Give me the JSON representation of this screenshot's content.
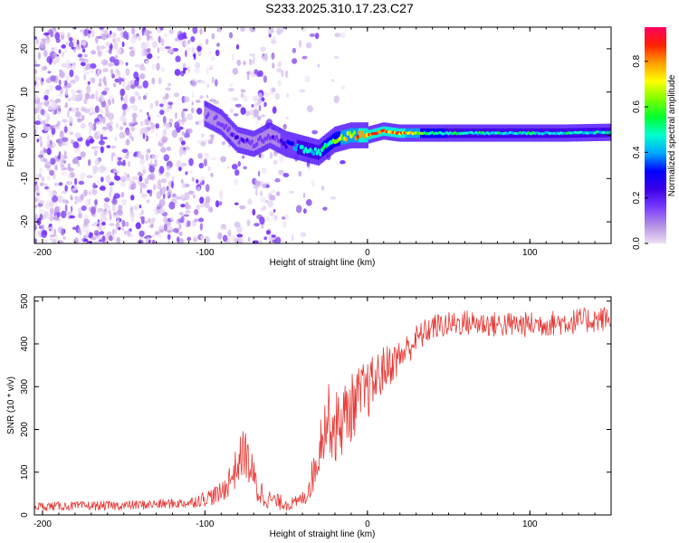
{
  "title": "S233.2025.310.17.23.C27",
  "colors": {
    "snr_line": "#e53935",
    "axis": "#000000",
    "colorbar": [
      "#ede0f4",
      "#b490e4",
      "#7a3cff",
      "#3d00e8",
      "#0000ff",
      "#00a8ff",
      "#00ffd0",
      "#00ff30",
      "#7dff00",
      "#ffff00",
      "#ffa000",
      "#ff2000",
      "#ff0060"
    ]
  },
  "chart_data": [
    {
      "type": "heatmap",
      "name": "spectrogram",
      "xlabel": "Height of straight line (km)",
      "ylabel": "Frequency (Hz)",
      "xlim": [
        -205,
        150
      ],
      "ylim": [
        -25,
        25
      ],
      "xticks": [
        -200,
        -100,
        0,
        100
      ],
      "xtick_labels": [
        "-200",
        "-100",
        "0",
        "100"
      ],
      "yticks": [
        20,
        10,
        0,
        -10,
        -20
      ],
      "ytick_labels": [
        "20",
        "10",
        "0",
        "-10",
        "-20"
      ],
      "colorbar": {
        "label": "Normalized spectral amplitude",
        "range": [
          0,
          0.95
        ],
        "ticks": [
          0.8,
          0.6,
          0.4,
          0.2,
          0.0
        ],
        "tick_labels": [
          "0.8",
          "0.6",
          "0.4",
          "0.2",
          "0.0"
        ]
      },
      "ridge": {
        "description": "carrier frequency track vs height",
        "x": [
          -100,
          -90,
          -80,
          -70,
          -60,
          -50,
          -40,
          -30,
          -20,
          -10,
          0,
          10,
          20,
          40,
          60,
          80,
          100,
          120,
          150
        ],
        "freq": [
          5,
          3,
          -1,
          -2,
          0,
          -2,
          -3,
          -4,
          -1,
          0,
          0,
          1,
          0.5,
          0.5,
          0.5,
          0.5,
          0.5,
          0.5,
          0.7
        ],
        "amplitude": [
          0.15,
          0.18,
          0.25,
          0.2,
          0.2,
          0.3,
          0.45,
          0.5,
          0.6,
          0.75,
          0.85,
          0.9,
          0.85,
          0.55,
          0.5,
          0.5,
          0.5,
          0.5,
          0.5
        ]
      }
    },
    {
      "type": "line",
      "name": "snr",
      "xlabel": "Height of straight line (km)",
      "ylabel": "SNR (10 * v/v)",
      "xlim": [
        -205,
        150
      ],
      "ylim": [
        0,
        510
      ],
      "xticks": [
        -200,
        -100,
        0,
        100
      ],
      "xtick_labels": [
        "-200",
        "-100",
        "0",
        "100"
      ],
      "yticks": [
        500,
        400,
        300,
        200,
        100,
        0
      ],
      "ytick_labels": [
        "500",
        "400",
        "300",
        "200",
        "100",
        "0"
      ],
      "trend": {
        "x": [
          -205,
          -150,
          -110,
          -90,
          -82,
          -76,
          -72,
          -68,
          -62,
          -55,
          -45,
          -38,
          -32,
          -28,
          -24,
          -20,
          -16,
          -12,
          -8,
          -4,
          0,
          4,
          10,
          20,
          30,
          40,
          60,
          80,
          100,
          120,
          150
        ],
        "y": [
          20,
          22,
          28,
          50,
          100,
          150,
          110,
          60,
          40,
          30,
          25,
          45,
          110,
          190,
          230,
          200,
          220,
          240,
          260,
          280,
          290,
          310,
          340,
          370,
          410,
          440,
          450,
          445,
          445,
          450,
          460
        ]
      },
      "noise_amplitude": {
        "x": [
          -205,
          -110,
          -90,
          -75,
          -60,
          -40,
          -30,
          -20,
          -10,
          0,
          20,
          40,
          150
        ],
        "y": [
          10,
          12,
          25,
          60,
          20,
          15,
          60,
          90,
          80,
          70,
          40,
          30,
          30
        ]
      }
    }
  ]
}
